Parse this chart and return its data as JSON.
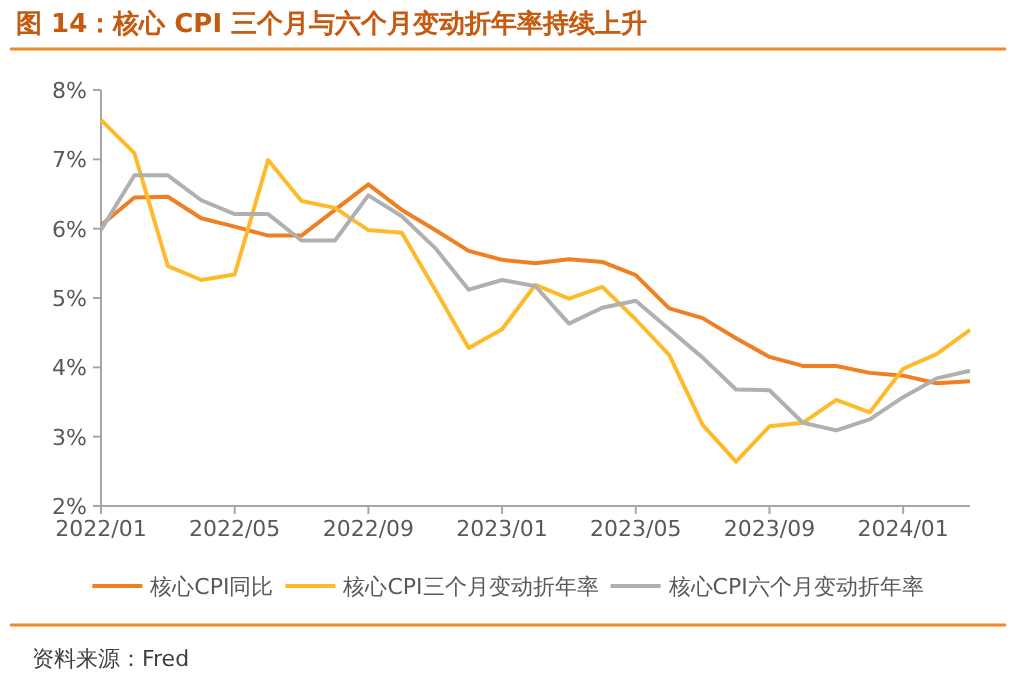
{
  "chart_data": {
    "type": "line",
    "title": "图 14：核心 CPI 三个月与六个月变动折年率持续上升",
    "x": [
      "2022-01",
      "2022-02",
      "2022-03",
      "2022-04",
      "2022-05",
      "2022-06",
      "2022-07",
      "2022-08",
      "2022-09",
      "2022-10",
      "2022-11",
      "2022-12",
      "2023-01",
      "2023-02",
      "2023-03",
      "2023-04",
      "2023-05",
      "2023-06",
      "2023-07",
      "2023-08",
      "2023-09",
      "2023-10",
      "2023-11",
      "2023-12",
      "2024-01",
      "2024-02",
      "2024-03"
    ],
    "series": [
      {
        "name": "核心CPI同比",
        "color": "#f07f22",
        "values": [
          6.05,
          6.45,
          6.46,
          6.15,
          6.03,
          5.9,
          5.9,
          6.27,
          6.64,
          6.27,
          5.98,
          5.68,
          5.55,
          5.5,
          5.56,
          5.52,
          5.33,
          4.85,
          4.71,
          4.42,
          4.15,
          4.02,
          4.02,
          3.92,
          3.88,
          3.77,
          3.8
        ]
      },
      {
        "name": "核心CPI三个月变动折年率",
        "color": "#fdbb2b",
        "values": [
          7.57,
          7.09,
          5.46,
          5.26,
          5.34,
          6.99,
          6.4,
          6.3,
          5.98,
          5.94,
          5.12,
          4.28,
          4.55,
          5.19,
          4.99,
          5.16,
          4.69,
          4.18,
          3.17,
          2.64,
          3.15,
          3.2,
          3.53,
          3.35,
          3.98,
          4.19,
          4.54
        ]
      },
      {
        "name": "核心CPI六个月变动折年率",
        "color": "#b0b0b0",
        "values": [
          5.98,
          6.77,
          6.77,
          6.41,
          6.21,
          6.21,
          5.83,
          5.83,
          6.48,
          6.18,
          5.72,
          5.12,
          5.26,
          5.17,
          4.63,
          4.86,
          4.96,
          4.55,
          4.14,
          3.68,
          3.67,
          3.2,
          3.09,
          3.25,
          3.57,
          3.84,
          3.95
        ]
      }
    ],
    "xlim": [
      "2022-01",
      "2024-03"
    ],
    "xticks": [
      {
        "value": "2022-01",
        "label": "2022/01"
      },
      {
        "value": "2022-05",
        "label": "2022/05"
      },
      {
        "value": "2022-09",
        "label": "2022/09"
      },
      {
        "value": "2023-01",
        "label": "2023/01"
      },
      {
        "value": "2023-05",
        "label": "2023/05"
      },
      {
        "value": "2023-09",
        "label": "2023/09"
      },
      {
        "value": "2024-01",
        "label": "2024/01"
      }
    ],
    "ylim": [
      2,
      8
    ],
    "yticks": [
      {
        "value": 2,
        "label": "2%"
      },
      {
        "value": 3,
        "label": "3%"
      },
      {
        "value": 4,
        "label": "4%"
      },
      {
        "value": 5,
        "label": "5%"
      },
      {
        "value": 6,
        "label": "6%"
      },
      {
        "value": 7,
        "label": "7%"
      },
      {
        "value": 8,
        "label": "8%"
      }
    ],
    "legend": "bottom",
    "grid": false,
    "marker": "none",
    "line_style": "solid",
    "annotations": [
      "资料来源：Fred"
    ]
  }
}
